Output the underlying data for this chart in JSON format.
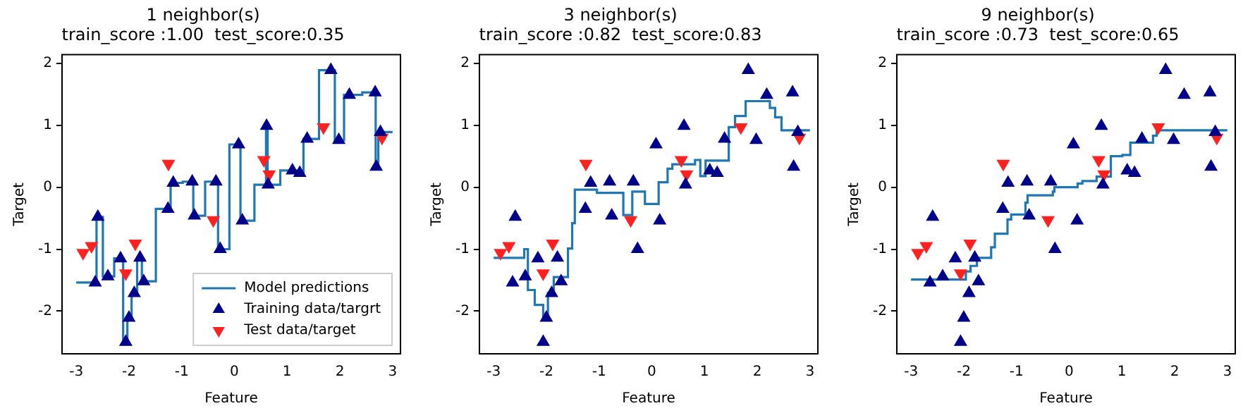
{
  "chart_data": [
    {
      "type": "scatter",
      "title": "1 neighbor(s)",
      "subtitle": "train_score :1.00  test_score:0.35",
      "xlabel": "Feature",
      "ylabel": "Target",
      "xlim": [
        -3.27,
        3.15
      ],
      "ylim": [
        -2.69,
        2.14
      ],
      "xticks": [
        -3,
        -2,
        -1,
        0,
        1,
        2,
        3
      ],
      "yticks": [
        -2,
        -1,
        0,
        1,
        2
      ],
      "grid": false,
      "legend": "bottom right",
      "series": [
        {
          "name": "Model predictions",
          "type": "step",
          "color": "#1f77b4",
          "marker": "none",
          "x": [
            -3,
            -2.615,
            -2.495,
            -2.28,
            -2.11,
            -2.03,
            -1.95,
            -1.845,
            -1.755,
            -1.49,
            -1.21,
            -0.98,
            -0.78,
            -0.555,
            -0.31,
            -0.095,
            0.115,
            0.38,
            0.6,
            0.63,
            0.87,
            1.17,
            1.31,
            1.605,
            1.905,
            2.08,
            2.425,
            2.68,
            2.73,
            3
          ],
          "values": [
            -1.54,
            -0.48,
            -1.44,
            -1.15,
            -2.5,
            -2.11,
            -1.71,
            -1.14,
            -1.52,
            -0.35,
            0.07,
            0.09,
            -0.46,
            0.09,
            -1.0,
            0.69,
            -0.54,
            0.04,
            0.99,
            0.04,
            0.27,
            0.23,
            0.78,
            1.89,
            0.76,
            1.49,
            1.53,
            0.33,
            0.89,
            0.89
          ]
        },
        {
          "name": "Training data/targrt",
          "type": "scatter",
          "color": "#00008b",
          "marker": "triangle",
          "x": [
            -2.64,
            -2.59,
            -2.4,
            -2.16,
            -2.06,
            -2.0,
            -1.9,
            -1.79,
            -1.72,
            -1.26,
            -1.16,
            -0.8,
            -0.76,
            -0.35,
            -0.27,
            0.08,
            0.15,
            0.61,
            0.64,
            1.1,
            1.24,
            1.38,
            1.83,
            1.98,
            2.18,
            2.67,
            2.69,
            2.77
          ],
          "values": [
            -1.54,
            -0.48,
            -1.44,
            -1.15,
            -2.5,
            -2.11,
            -1.71,
            -1.14,
            -1.52,
            -0.35,
            0.07,
            0.09,
            -0.46,
            0.09,
            -1.0,
            0.69,
            -0.54,
            0.99,
            0.04,
            0.27,
            0.23,
            0.78,
            1.89,
            0.76,
            1.49,
            1.53,
            0.33,
            0.89
          ]
        },
        {
          "name": "Test data/target",
          "type": "scatter",
          "color": "#ff2020",
          "marker": "triangle-down",
          "x": [
            -2.87,
            -2.71,
            -2.06,
            -1.88,
            -1.25,
            -0.4,
            0.56,
            0.66,
            1.69,
            2.8
          ],
          "values": [
            -1.06,
            -0.95,
            -1.39,
            -0.91,
            0.38,
            -0.53,
            0.44,
            0.21,
            0.97,
            0.8
          ]
        }
      ]
    },
    {
      "type": "scatter",
      "title": "3 neighbor(s)",
      "subtitle": "train_score :0.82  test_score:0.83",
      "xlabel": "Feature",
      "ylabel": "Target",
      "xlim": [
        -3.27,
        3.15
      ],
      "ylim": [
        -2.69,
        2.14
      ],
      "xticks": [
        -3,
        -2,
        -1,
        0,
        1,
        2,
        3
      ],
      "yticks": [
        -2,
        -1,
        0,
        1,
        2
      ],
      "grid": false,
      "legend": false,
      "series": [
        {
          "type": "step",
          "color": "#1f77b4",
          "marker": "none",
          "x": [
            -3,
            -2.42,
            -2.35,
            -2.22,
            -2.06,
            -1.97,
            -1.86,
            -1.59,
            -1.51,
            -1.46,
            -1.04,
            -0.54,
            -0.37,
            -0.13,
            0.13,
            0.3,
            0.39,
            0.82,
            0.92,
            1.02,
            1.46,
            1.58,
            1.78,
            2.24,
            2.34,
            2.46,
            3
          ],
          "values": [
            -1.14,
            -1.0,
            -1.66,
            -1.9,
            -2.08,
            -1.71,
            -1.45,
            -0.99,
            -0.58,
            -0.04,
            -0.09,
            -0.45,
            -0.07,
            -0.27,
            0.08,
            0.3,
            0.37,
            0.44,
            0.18,
            0.43,
            0.97,
            1.15,
            1.39,
            1.28,
            1.13,
            0.92,
            0.92
          ]
        },
        {
          "type": "scatter",
          "color": "#00008b",
          "marker": "triangle",
          "x": [
            -2.64,
            -2.59,
            -2.4,
            -2.16,
            -2.06,
            -2.0,
            -1.9,
            -1.79,
            -1.72,
            -1.26,
            -1.16,
            -0.8,
            -0.76,
            -0.35,
            -0.27,
            0.08,
            0.15,
            0.61,
            0.64,
            1.1,
            1.24,
            1.38,
            1.83,
            1.98,
            2.18,
            2.67,
            2.69,
            2.77
          ],
          "values": [
            -1.54,
            -0.48,
            -1.44,
            -1.15,
            -2.5,
            -2.11,
            -1.71,
            -1.14,
            -1.52,
            -0.35,
            0.07,
            0.09,
            -0.46,
            0.09,
            -1.0,
            0.69,
            -0.54,
            0.99,
            0.04,
            0.27,
            0.23,
            0.78,
            1.89,
            0.76,
            1.49,
            1.53,
            0.33,
            0.89
          ]
        },
        {
          "type": "scatter",
          "color": "#ff2020",
          "marker": "triangle-down",
          "x": [
            -2.87,
            -2.71,
            -2.06,
            -1.88,
            -1.25,
            -0.4,
            0.56,
            0.66,
            1.69,
            2.8
          ],
          "values": [
            -1.06,
            -0.95,
            -1.39,
            -0.91,
            0.38,
            -0.53,
            0.44,
            0.21,
            0.97,
            0.8
          ]
        }
      ]
    },
    {
      "type": "scatter",
      "title": "9 neighbor(s)",
      "subtitle": "train_score :0.73  test_score:0.65",
      "xlabel": "Feature",
      "ylabel": "Target",
      "xlim": [
        -3.27,
        3.15
      ],
      "ylim": [
        -2.69,
        2.14
      ],
      "xticks": [
        -3,
        -2,
        -1,
        0,
        1,
        2,
        3
      ],
      "yticks": [
        -2,
        -1,
        0,
        1,
        2
      ],
      "grid": false,
      "legend": false,
      "series": [
        {
          "type": "step",
          "color": "#1f77b4",
          "marker": "none",
          "x": [
            -3,
            -1.96,
            -1.87,
            -1.75,
            -1.48,
            -1.41,
            -1.17,
            -1.1,
            -0.83,
            -0.79,
            -0.31,
            -0.28,
            0.16,
            0.25,
            0.52,
            0.79,
            1.01,
            1.16,
            1.59,
            1.66,
            3
          ],
          "values": [
            -1.49,
            -1.36,
            -1.27,
            -1.14,
            -0.97,
            -0.75,
            -0.52,
            -0.44,
            -0.25,
            -0.13,
            -0.07,
            0.0,
            0.06,
            0.1,
            0.17,
            0.5,
            0.52,
            0.72,
            0.83,
            0.92,
            0.92
          ]
        },
        {
          "type": "scatter",
          "color": "#00008b",
          "marker": "triangle",
          "x": [
            -2.64,
            -2.59,
            -2.4,
            -2.16,
            -2.06,
            -2.0,
            -1.9,
            -1.79,
            -1.72,
            -1.26,
            -1.16,
            -0.8,
            -0.76,
            -0.35,
            -0.27,
            0.08,
            0.15,
            0.61,
            0.64,
            1.1,
            1.24,
            1.38,
            1.83,
            1.98,
            2.18,
            2.67,
            2.69,
            2.77
          ],
          "values": [
            -1.54,
            -0.48,
            -1.44,
            -1.15,
            -2.5,
            -2.11,
            -1.71,
            -1.14,
            -1.52,
            -0.35,
            0.07,
            0.09,
            -0.46,
            0.09,
            -1.0,
            0.69,
            -0.54,
            0.99,
            0.04,
            0.27,
            0.23,
            0.78,
            1.89,
            0.76,
            1.49,
            1.53,
            0.33,
            0.89
          ]
        },
        {
          "type": "scatter",
          "color": "#ff2020",
          "marker": "triangle-down",
          "x": [
            -2.87,
            -2.71,
            -2.06,
            -1.88,
            -1.25,
            -0.4,
            0.56,
            0.66,
            1.69,
            2.8
          ],
          "values": [
            -1.06,
            -0.95,
            -1.39,
            -0.91,
            0.38,
            -0.53,
            0.44,
            0.21,
            0.97,
            0.8
          ]
        }
      ]
    }
  ]
}
